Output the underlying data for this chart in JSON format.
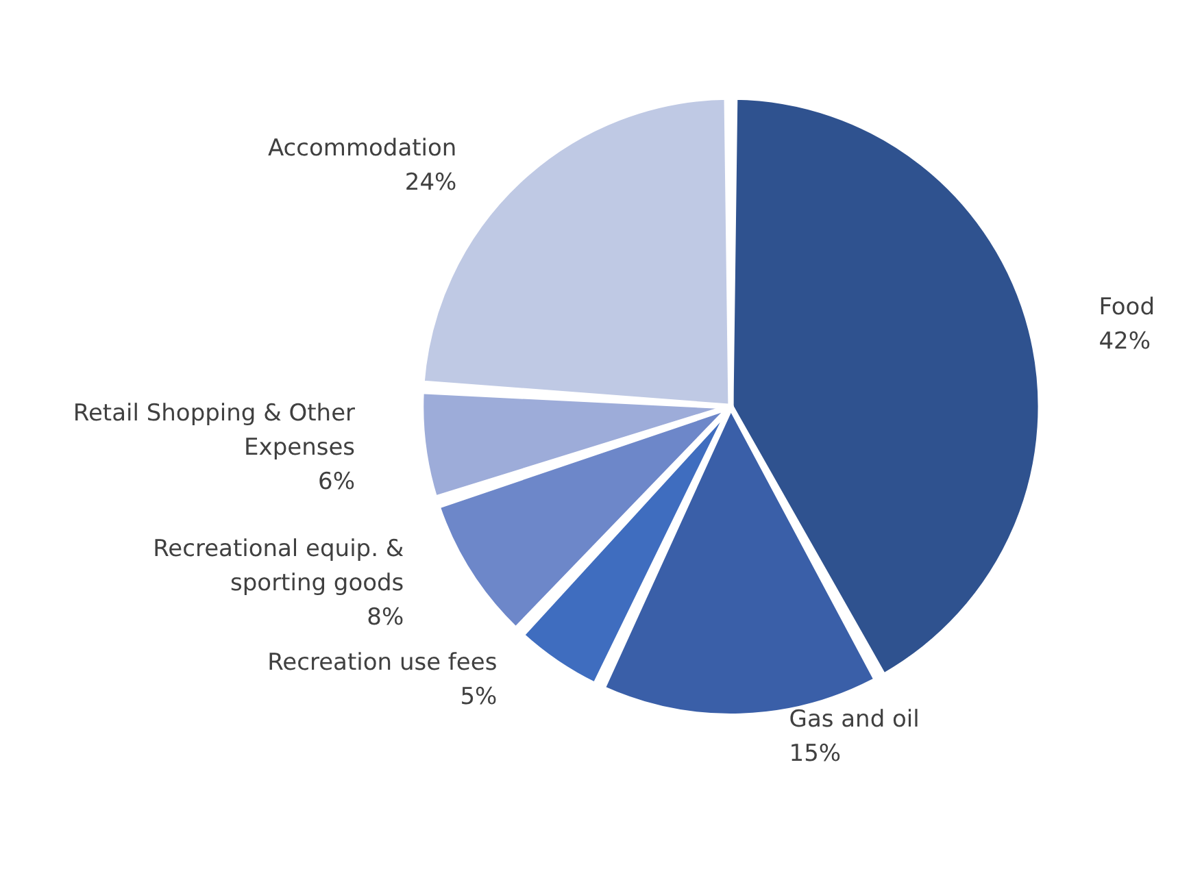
{
  "chart_data": {
    "type": "pie",
    "categories": [
      "Food",
      "Gas and oil",
      "Recreation use fees",
      "Recreational equip. &\nsporting goods",
      "Retail Shopping & Other\nExpenses",
      "Accommodation"
    ],
    "values": [
      42,
      15,
      5,
      8,
      6,
      24
    ],
    "value_labels": [
      "42%",
      "15%",
      "5%",
      "8%",
      "6%",
      "24%"
    ],
    "colors": [
      "#2f528f",
      "#3a5fa8",
      "#3f6dbf",
      "#6d87c9",
      "#9dacd9",
      "#bfc9e4"
    ]
  }
}
